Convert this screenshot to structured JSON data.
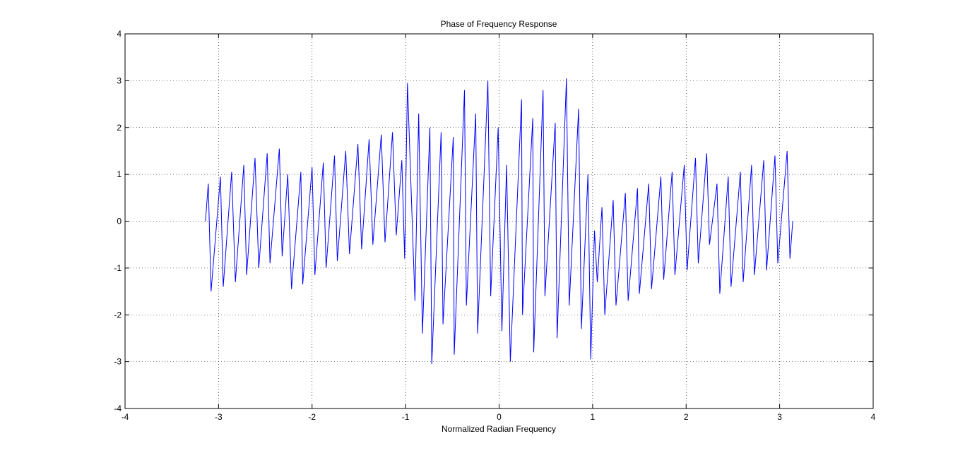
{
  "chart_data": {
    "type": "line",
    "title": "Phase of Frequency Response",
    "xlabel": "Normalized Radian Frequency",
    "x": [
      -3.14,
      -3.11,
      -3.08,
      -2.98,
      -2.95,
      -2.86,
      -2.82,
      -2.73,
      -2.7,
      -2.61,
      -2.57,
      -2.48,
      -2.45,
      -2.35,
      -2.32,
      -2.26,
      -2.22,
      -2.12,
      -2.1,
      -2.0,
      -1.97,
      -1.88,
      -1.85,
      -1.76,
      -1.73,
      -1.64,
      -1.6,
      -1.51,
      -1.47,
      -1.39,
      -1.35,
      -1.26,
      -1.22,
      -1.14,
      -1.1,
      -1.04,
      -1.01,
      -0.98,
      -0.9,
      -0.86,
      -0.82,
      -0.74,
      -0.72,
      -0.62,
      -0.6,
      -0.49,
      -0.48,
      -0.37,
      -0.35,
      -0.25,
      -0.23,
      -0.12,
      -0.09,
      -0.01,
      0.03,
      0.08,
      0.12,
      0.24,
      0.25,
      0.36,
      0.37,
      0.47,
      0.49,
      0.6,
      0.62,
      0.72,
      0.75,
      0.85,
      0.88,
      0.95,
      0.98,
      1.02,
      1.05,
      1.1,
      1.13,
      1.22,
      1.25,
      1.35,
      1.38,
      1.48,
      1.5,
      1.6,
      1.63,
      1.73,
      1.76,
      1.85,
      1.88,
      1.98,
      2.01,
      2.1,
      2.13,
      2.22,
      2.25,
      2.33,
      2.36,
      2.45,
      2.48,
      2.58,
      2.61,
      2.7,
      2.73,
      2.83,
      2.86,
      2.95,
      2.98,
      3.08,
      3.11,
      3.14
    ],
    "values": [
      0,
      0.8,
      -1.5,
      0.95,
      -1.4,
      1.05,
      -1.3,
      1.2,
      -1.15,
      1.35,
      -1.0,
      1.45,
      -0.9,
      1.55,
      -0.75,
      1.0,
      -1.45,
      1.05,
      -1.35,
      1.15,
      -1.15,
      1.25,
      -1.0,
      1.4,
      -0.85,
      1.5,
      -0.7,
      1.65,
      -0.6,
      1.75,
      -0.5,
      1.85,
      -0.45,
      1.9,
      -0.3,
      1.3,
      -0.8,
      2.95,
      -1.7,
      2.3,
      -2.4,
      2.0,
      -3.05,
      1.9,
      -2.2,
      1.8,
      -2.85,
      2.8,
      -1.8,
      2.3,
      -2.4,
      3.0,
      -1.6,
      2.0,
      -2.35,
      1.2,
      -3.0,
      2.6,
      -2.0,
      2.2,
      -2.8,
      2.8,
      -1.6,
      2.1,
      -2.5,
      3.05,
      -1.8,
      2.4,
      -2.3,
      1.0,
      -2.95,
      -0.2,
      -1.3,
      0.3,
      -2.0,
      0.45,
      -1.8,
      0.6,
      -1.7,
      0.7,
      -1.55,
      0.8,
      -1.45,
      0.95,
      -1.25,
      1.05,
      -1.15,
      1.2,
      -1.05,
      1.35,
      -0.9,
      1.45,
      -0.5,
      0.8,
      -1.55,
      0.95,
      -1.4,
      1.05,
      -1.3,
      1.2,
      -1.15,
      1.3,
      -1.05,
      1.4,
      -0.9,
      1.5,
      -0.8,
      0
    ],
    "color": "#0000ff",
    "xlim": [
      -4,
      4
    ],
    "ylim": [
      -4,
      4
    ],
    "xticks": [
      -4,
      -3,
      -2,
      -1,
      0,
      1,
      2,
      3,
      4
    ],
    "yticks": [
      -4,
      -3,
      -2,
      -1,
      0,
      1,
      2,
      3,
      4
    ],
    "grid": true
  }
}
